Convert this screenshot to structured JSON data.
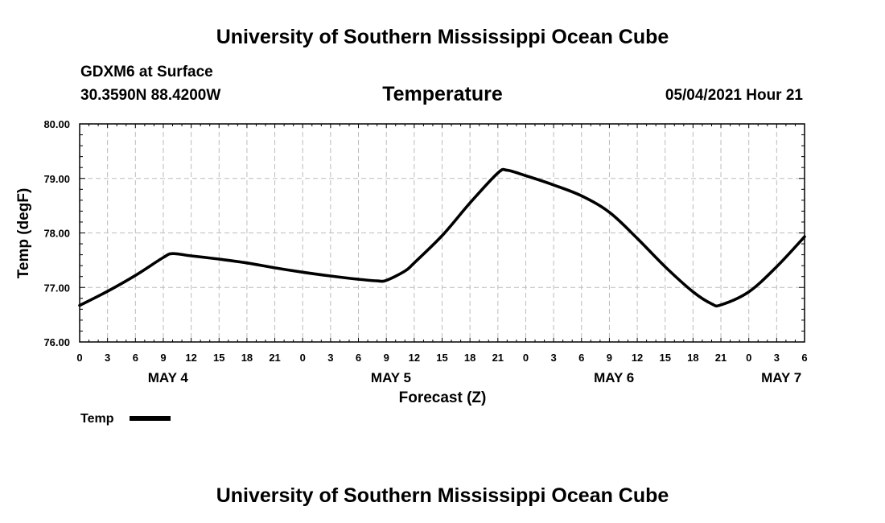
{
  "header": {
    "org_title_top": "University of Southern Mississippi Ocean Cube",
    "station_line": "GDXM6 at Surface",
    "coords": "30.3590N  88.4200W",
    "variable": "Temperature",
    "run_time": "05/04/2021 Hour 21",
    "org_title_bottom": "University of Southern Mississippi Ocean Cube"
  },
  "legend": {
    "label": "Temp"
  },
  "colors": {
    "line": "#000000",
    "grid": "#bbbbbb",
    "background": "#ffffff"
  },
  "chart_data": {
    "type": "line",
    "title": "Temperature",
    "xlabel": "Forecast (Z)",
    "ylabel": "Temp (degF)",
    "ylim": [
      76.0,
      80.0
    ],
    "xlim_hours": [
      0,
      78
    ],
    "y_ticks": [
      76.0,
      77.0,
      78.0,
      79.0,
      80.0
    ],
    "y_tick_labels": [
      "76.00",
      "77.00",
      "78.00",
      "79.00",
      "80.00"
    ],
    "x_tick_labels": [
      "0",
      "3",
      "6",
      "9",
      "12",
      "15",
      "18",
      "21",
      "0",
      "3",
      "6",
      "9",
      "12",
      "15",
      "18",
      "21",
      "0",
      "3",
      "6",
      "9",
      "12",
      "15",
      "18",
      "21",
      "0",
      "3",
      "6"
    ],
    "day_labels": [
      {
        "label": "MAY 4",
        "hour": 9.5
      },
      {
        "label": "MAY 5",
        "hour": 33.5
      },
      {
        "label": "MAY 6",
        "hour": 57.5
      },
      {
        "label": "MAY 7",
        "hour": 75.5
      }
    ],
    "grid": true,
    "legend_position": "bottom-left",
    "series": [
      {
        "name": "Temp",
        "x": [
          0,
          3,
          6,
          9,
          10,
          12,
          15,
          18,
          21,
          24,
          27,
          30,
          32,
          33,
          35,
          36,
          39,
          42,
          45,
          46,
          48,
          51,
          54,
          57,
          60,
          63,
          66,
          68,
          69,
          72,
          75,
          78
        ],
        "y": [
          76.67,
          76.93,
          77.22,
          77.55,
          77.62,
          77.58,
          77.52,
          77.45,
          77.36,
          77.28,
          77.21,
          77.15,
          77.12,
          77.13,
          77.3,
          77.45,
          77.95,
          78.55,
          79.1,
          79.15,
          79.05,
          78.88,
          78.68,
          78.38,
          77.9,
          77.38,
          76.92,
          76.7,
          76.68,
          76.92,
          77.38,
          77.93
        ]
      }
    ]
  }
}
